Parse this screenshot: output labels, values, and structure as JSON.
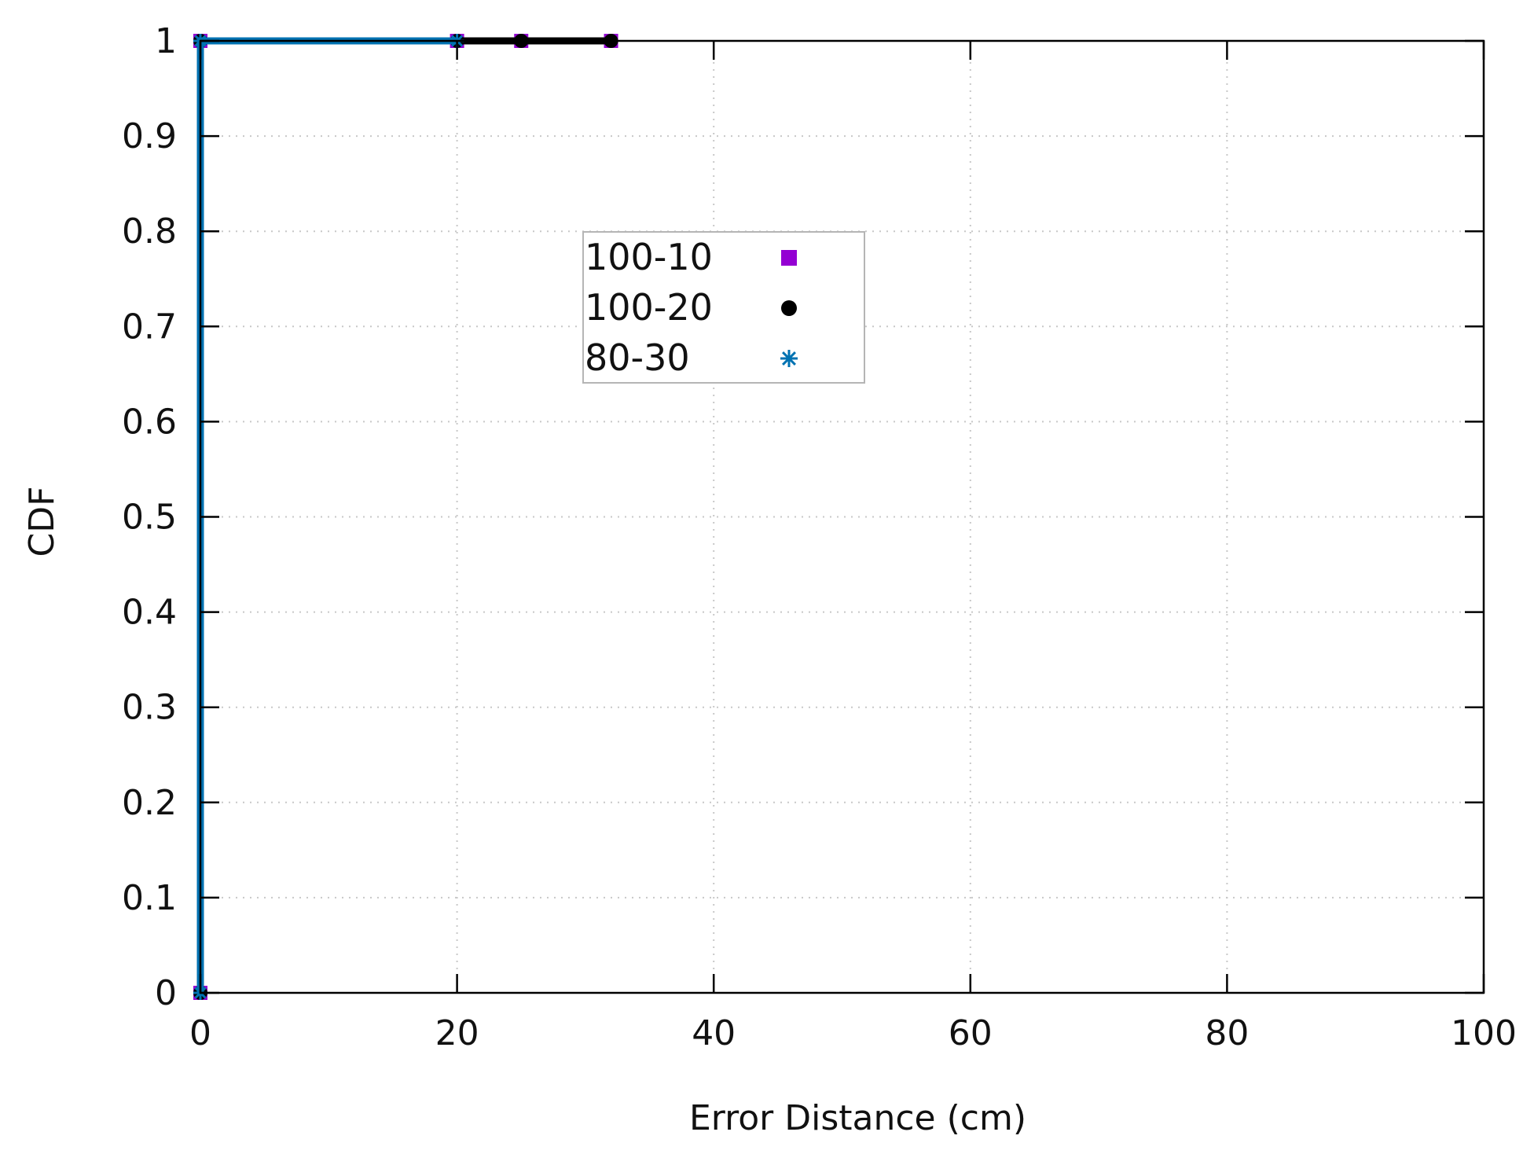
{
  "chart_data": {
    "type": "line",
    "title": "",
    "xlabel": "Error Distance (cm)",
    "ylabel": "CDF",
    "xlim": [
      0,
      100
    ],
    "ylim": [
      0,
      1
    ],
    "x_ticks": [
      "0",
      "20",
      "40",
      "60",
      "80",
      "100"
    ],
    "y_ticks": [
      "0",
      "0.1",
      "0.2",
      "0.3",
      "0.4",
      "0.5",
      "0.6",
      "0.7",
      "0.8",
      "0.9",
      "1"
    ],
    "grid": true,
    "legend_position": "upper-center",
    "series": [
      {
        "name": "100-10",
        "marker": "square",
        "color": "#9400d3",
        "points": [
          [
            0,
            0
          ],
          [
            0,
            1
          ],
          [
            20,
            1
          ],
          [
            25,
            1
          ],
          [
            32,
            1
          ]
        ]
      },
      {
        "name": "100-20",
        "marker": "circle",
        "color": "#000000",
        "points": [
          [
            0,
            0
          ],
          [
            0,
            1
          ],
          [
            20,
            1
          ],
          [
            25,
            1
          ],
          [
            32,
            1
          ]
        ]
      },
      {
        "name": "80-30",
        "marker": "asterisk",
        "color": "#0072b2",
        "points": [
          [
            0,
            0
          ],
          [
            0,
            1
          ],
          [
            20,
            1
          ]
        ]
      }
    ]
  }
}
